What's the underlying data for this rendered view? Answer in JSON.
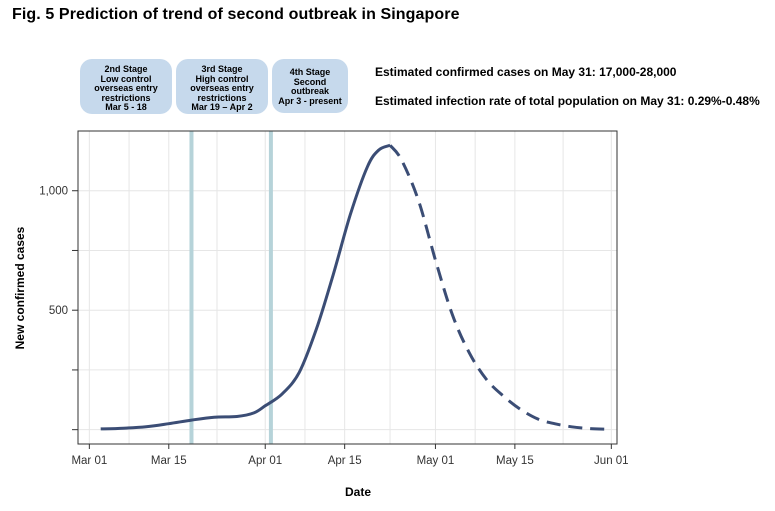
{
  "title": "Fig. 5 Prediction of trend of second outbreak in Singapore",
  "stages": [
    {
      "lines": [
        "2nd Stage",
        "Low control",
        "overseas entry",
        "restrictions",
        "Mar 5 - 18"
      ]
    },
    {
      "lines": [
        "3rd Stage",
        "High control",
        "overseas entry",
        "restrictions",
        "Mar 19 – Apr 2"
      ]
    },
    {
      "lines": [
        "4th Stage",
        "Second",
        "outbreak",
        "Apr 3 - present"
      ]
    }
  ],
  "stats": [
    "Estimated confirmed cases on May 31: 17,000-28,000",
    "Estimated infection rate of total population on May 31: 0.29%-0.48%"
  ],
  "chart_data": {
    "type": "line",
    "xlabel": "Date",
    "ylabel": "New confirmed cases",
    "x_ticks": [
      "Mar 01",
      "Mar 15",
      "Apr 01",
      "Apr 15",
      "May 01",
      "May 15",
      "Jun 01"
    ],
    "x_tick_days": [
      0,
      14,
      31,
      45,
      61,
      75,
      92
    ],
    "y_ticks": [
      "1,000",
      "500"
    ],
    "y_tick_values": [
      1000,
      500
    ],
    "xlim": [
      "Feb 27",
      "Jun 02"
    ],
    "ylim": [
      -60,
      1250
    ],
    "grid": true,
    "stage_markers": [
      "Mar 19",
      "Apr 02"
    ],
    "series": [
      {
        "style": "solid",
        "color": "#3b4d75",
        "x": [
          "Mar 03",
          "Mar 07",
          "Mar 11",
          "Mar 15",
          "Mar 19",
          "Mar 23",
          "Mar 27",
          "Mar 30",
          "Apr 01",
          "Apr 04",
          "Apr 07",
          "Apr 10",
          "Apr 13",
          "Apr 16",
          "Apr 19",
          "Apr 21",
          "Apr 23"
        ],
        "y": [
          3,
          6,
          12,
          25,
          40,
          52,
          55,
          70,
          100,
          150,
          240,
          420,
          650,
          900,
          1100,
          1170,
          1190
        ]
      },
      {
        "style": "dashed",
        "color": "#3b4d75",
        "x": [
          "Apr 23",
          "Apr 25",
          "Apr 28",
          "May 01",
          "May 04",
          "May 07",
          "May 10",
          "May 13",
          "May 16",
          "May 19",
          "May 22",
          "May 25",
          "May 28",
          "May 31"
        ],
        "y": [
          1190,
          1130,
          960,
          710,
          480,
          320,
          210,
          140,
          85,
          45,
          25,
          12,
          5,
          2
        ]
      }
    ]
  }
}
